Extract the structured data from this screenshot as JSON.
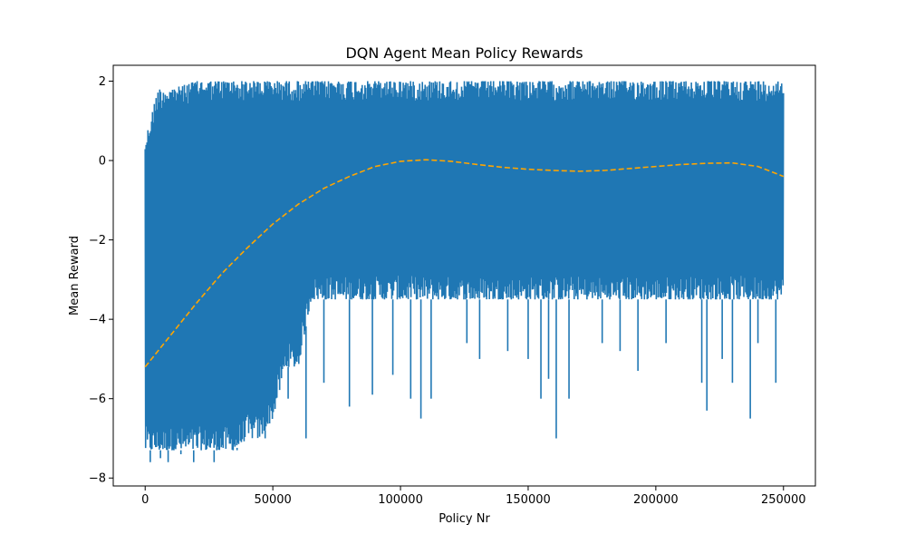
{
  "chart_data": {
    "type": "line",
    "title": "DQN Agent Mean Policy Rewards",
    "xlabel": "Policy Nr",
    "ylabel": "Mean Reward",
    "xlim": [
      -12500,
      262500
    ],
    "ylim": [
      -8.2,
      2.4
    ],
    "xticks": [
      0,
      50000,
      100000,
      150000,
      200000,
      250000
    ],
    "xtick_labels": [
      "0",
      "50000",
      "100000",
      "150000",
      "200000",
      "250000"
    ],
    "yticks": [
      2,
      0,
      -2,
      -4,
      -6,
      -8
    ],
    "ytick_labels": [
      "2",
      "0",
      "−2",
      "−4",
      "−6",
      "−8"
    ],
    "grid": false,
    "legend": "none",
    "series": [
      {
        "style": "solid",
        "color": "#1f77b4",
        "x": [
          0,
          5000,
          10000,
          15000,
          20000,
          25000,
          30000,
          35000,
          40000,
          45000,
          50000,
          55000,
          60000,
          65000,
          70000,
          80000,
          90000,
          100000,
          110000,
          120000,
          130000,
          140000,
          150000,
          160000,
          170000,
          180000,
          190000,
          200000,
          210000,
          220000,
          230000,
          240000,
          250000
        ],
        "upper": [
          0.5,
          1.8,
          1.8,
          1.9,
          2.0,
          2.0,
          2.0,
          2.0,
          2.0,
          2.0,
          2.0,
          2.0,
          2.0,
          2.0,
          2.0,
          2.0,
          2.0,
          2.0,
          2.0,
          2.0,
          2.0,
          2.0,
          2.0,
          2.0,
          2.0,
          2.0,
          2.0,
          2.0,
          2.0,
          2.0,
          2.0,
          2.0,
          2.0
        ],
        "lower": [
          -7.3,
          -7.3,
          -7.3,
          -7.3,
          -7.3,
          -7.3,
          -7.3,
          -7.3,
          -7.0,
          -7.0,
          -6.5,
          -5.2,
          -5.2,
          -3.5,
          -3.5,
          -3.5,
          -3.5,
          -3.5,
          -3.5,
          -3.5,
          -3.5,
          -3.5,
          -3.5,
          -3.5,
          -3.5,
          -3.5,
          -3.5,
          -3.5,
          -3.5,
          -3.5,
          -3.5,
          -3.5,
          -3.5
        ],
        "spikes": [
          [
            2000,
            -7.6
          ],
          [
            6000,
            -7.5
          ],
          [
            9000,
            -7.6
          ],
          [
            14000,
            -7.4
          ],
          [
            19000,
            -7.6
          ],
          [
            27000,
            -7.6
          ],
          [
            36000,
            -7.3
          ],
          [
            47000,
            -7.0
          ],
          [
            56000,
            -6.0
          ],
          [
            63000,
            -7.0
          ],
          [
            70000,
            -5.6
          ],
          [
            80000,
            -6.2
          ],
          [
            89000,
            -5.9
          ],
          [
            97000,
            -5.4
          ],
          [
            104000,
            -6.0
          ],
          [
            108000,
            -6.5
          ],
          [
            112000,
            -6.0
          ],
          [
            126000,
            -4.6
          ],
          [
            131000,
            -5.0
          ],
          [
            142000,
            -4.8
          ],
          [
            150000,
            -5.0
          ],
          [
            155000,
            -6.0
          ],
          [
            158000,
            -5.5
          ],
          [
            161000,
            -7.0
          ],
          [
            166000,
            -6.0
          ],
          [
            179000,
            -4.6
          ],
          [
            186000,
            -4.8
          ],
          [
            193000,
            -5.3
          ],
          [
            204000,
            -4.6
          ],
          [
            218000,
            -5.6
          ],
          [
            220000,
            -6.3
          ],
          [
            226000,
            -5.0
          ],
          [
            230000,
            -5.6
          ],
          [
            237000,
            -6.5
          ],
          [
            240000,
            -4.6
          ],
          [
            247000,
            -5.6
          ]
        ]
      },
      {
        "style": "dashed",
        "color": "#ffa500",
        "x": [
          0,
          10000,
          20000,
          30000,
          40000,
          50000,
          60000,
          70000,
          80000,
          90000,
          100000,
          110000,
          120000,
          130000,
          140000,
          150000,
          160000,
          170000,
          180000,
          190000,
          200000,
          210000,
          220000,
          230000,
          240000,
          250000
        ],
        "y": [
          -5.2,
          -4.4,
          -3.6,
          -2.85,
          -2.2,
          -1.6,
          -1.1,
          -0.7,
          -0.4,
          -0.15,
          -0.02,
          0.02,
          -0.02,
          -0.1,
          -0.17,
          -0.22,
          -0.25,
          -0.27,
          -0.25,
          -0.2,
          -0.15,
          -0.1,
          -0.07,
          -0.06,
          -0.15,
          -0.4
        ]
      }
    ]
  }
}
